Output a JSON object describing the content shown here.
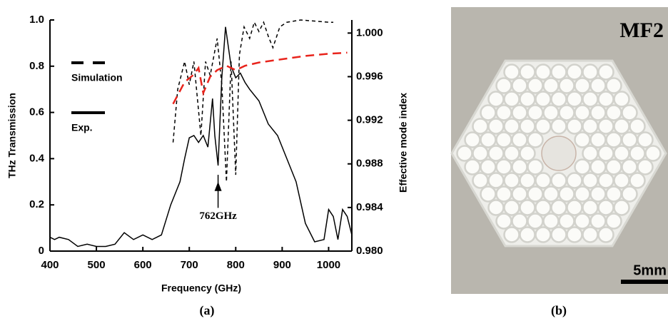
{
  "chart_data": {
    "type": "line",
    "xlabel": "Frequency (GHz)",
    "ylabel": "THz Transmission",
    "y2label": "Effective mode index",
    "xlim": [
      400,
      1050
    ],
    "xticks": [
      400,
      500,
      600,
      700,
      800,
      900,
      1000
    ],
    "ylim": [
      0,
      1.0
    ],
    "yticks": [
      0,
      0.2,
      0.4,
      0.6,
      0.8,
      {
        "value": 1,
        "label": "1.0"
      }
    ],
    "y2lim": [
      0.98,
      1.0012
    ],
    "y2ticks": [
      {
        "value": 0.98,
        "label": "0.980"
      },
      {
        "value": 0.984,
        "label": "0.984"
      },
      {
        "value": 0.988,
        "label": "0.988"
      },
      {
        "value": 0.992,
        "label": "0.992"
      },
      {
        "value": 0.996,
        "label": "0.996"
      },
      {
        "value": 1,
        "label": "1.000"
      }
    ],
    "series": [
      {
        "name": "Simulation",
        "color": "#000000",
        "dash": "5,4",
        "x": [
          665,
          675,
          690,
          700,
          710,
          725,
          735,
          745,
          760,
          770,
          780,
          790,
          800,
          808,
          818,
          830,
          840,
          850,
          860,
          870,
          880,
          895,
          910,
          940,
          1000,
          1010
        ],
        "values": [
          0.47,
          0.7,
          0.82,
          0.72,
          0.82,
          0.5,
          0.82,
          0.76,
          0.92,
          0.72,
          0.3,
          0.82,
          0.33,
          0.85,
          0.97,
          0.92,
          0.99,
          0.95,
          0.99,
          0.93,
          0.88,
          0.97,
          0.99,
          1.0,
          0.99,
          0.99
        ]
      },
      {
        "name": "Exp.",
        "color": "#000000",
        "x": [
          400,
          410,
          420,
          440,
          460,
          480,
          500,
          520,
          540,
          560,
          580,
          600,
          620,
          640,
          660,
          680,
          690,
          700,
          710,
          720,
          730,
          740,
          750,
          755,
          762,
          770,
          778,
          790,
          800,
          810,
          820,
          830,
          850,
          870,
          890,
          910,
          930,
          950,
          970,
          990,
          1000,
          1010,
          1020,
          1030,
          1040,
          1050
        ],
        "values": [
          0.06,
          0.05,
          0.06,
          0.05,
          0.02,
          0.03,
          0.02,
          0.02,
          0.03,
          0.08,
          0.05,
          0.07,
          0.05,
          0.07,
          0.2,
          0.3,
          0.4,
          0.49,
          0.5,
          0.47,
          0.5,
          0.45,
          0.66,
          0.5,
          0.37,
          0.75,
          0.97,
          0.8,
          0.75,
          0.77,
          0.73,
          0.7,
          0.65,
          0.55,
          0.5,
          0.4,
          0.3,
          0.12,
          0.04,
          0.05,
          0.18,
          0.15,
          0.05,
          0.18,
          0.15,
          0.07
        ]
      },
      {
        "color": "#e8241c",
        "dash": "12,7",
        "axis": "y2",
        "x": [
          665,
          690,
          710,
          720,
          730,
          745,
          760,
          780,
          800,
          820,
          850,
          900,
          950,
          1000,
          1040
        ],
        "values": [
          0.9935,
          0.9955,
          0.9962,
          0.9968,
          0.9945,
          0.996,
          0.9966,
          0.997,
          0.9966,
          0.997,
          0.9973,
          0.9976,
          0.9979,
          0.9981,
          0.9982
        ]
      }
    ],
    "annotation": {
      "text": "762GHz",
      "x": 762,
      "y": 0.15
    }
  },
  "photo": {
    "label": "MF2",
    "scale_bar": "5mm"
  },
  "captions": [
    "(a)",
    "(b)"
  ]
}
